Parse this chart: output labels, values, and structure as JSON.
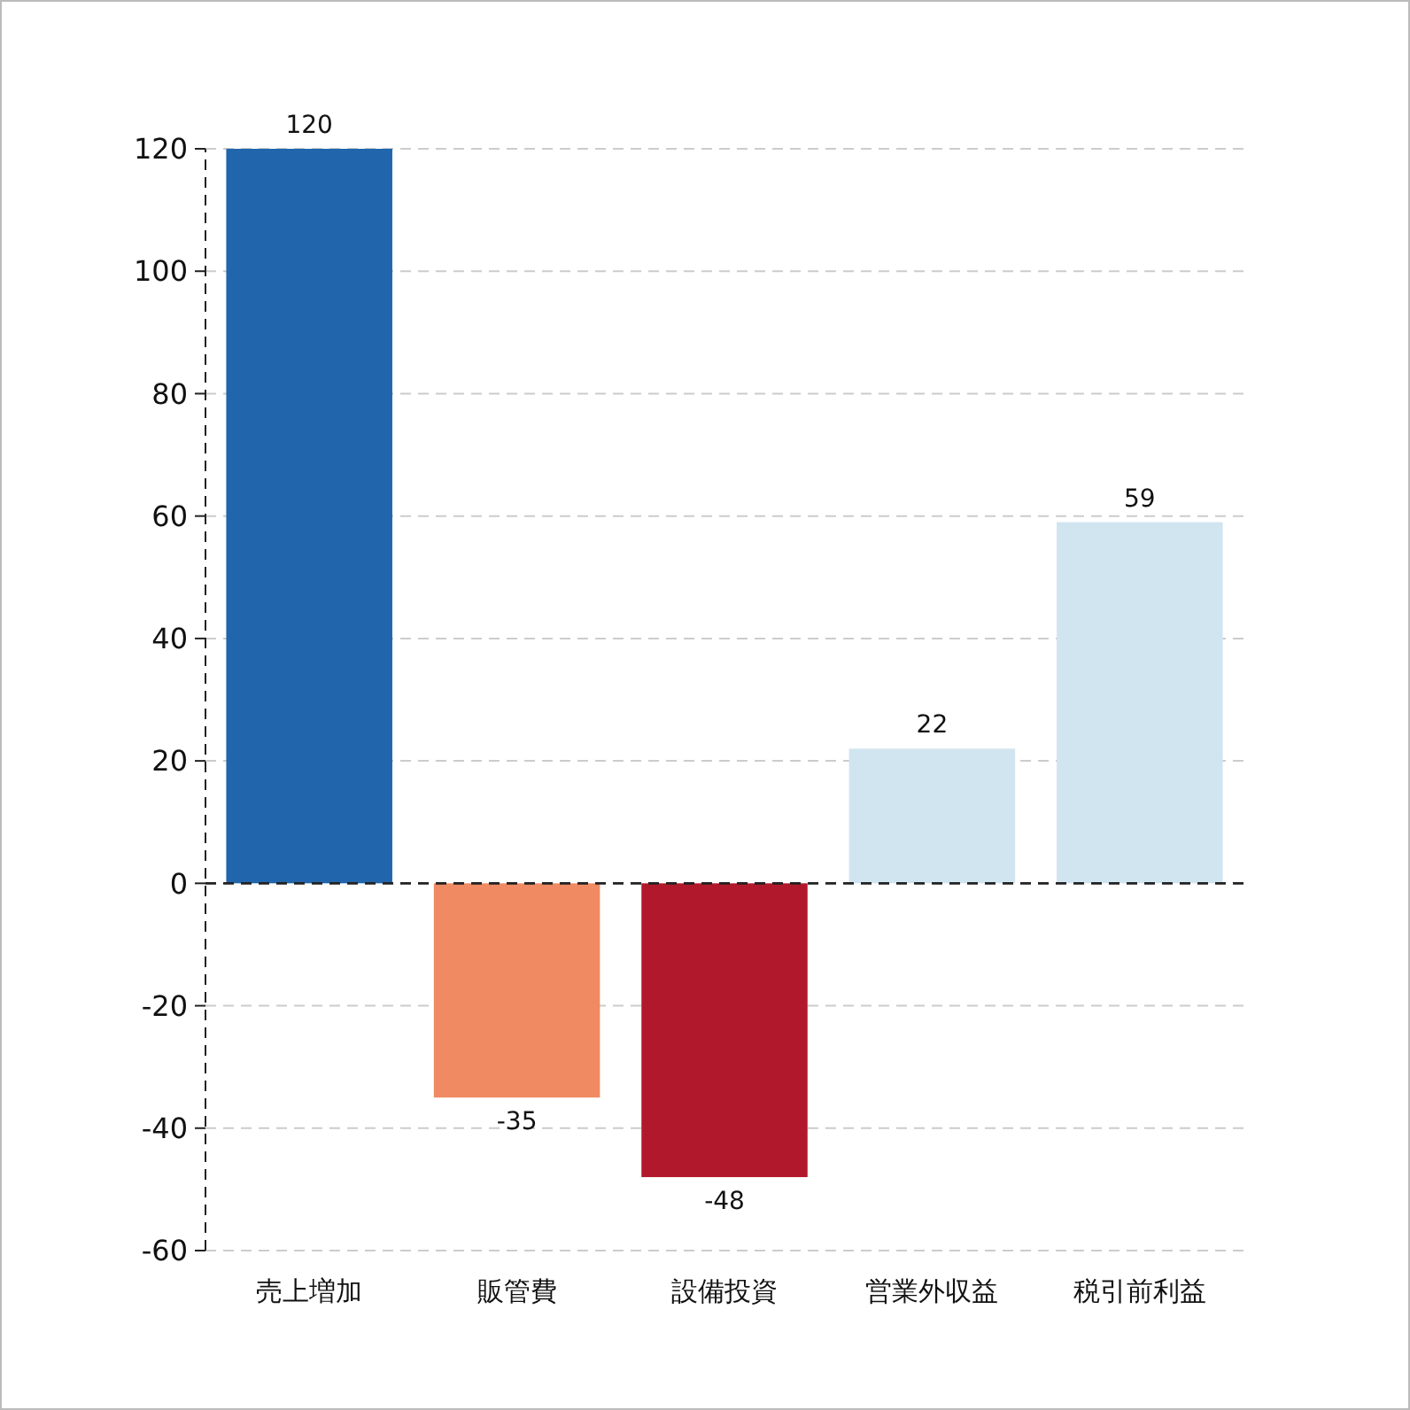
{
  "chart_data": {
    "type": "bar",
    "categories": [
      "売上増加",
      "販管費",
      "設備投資",
      "営業外収益",
      "税引前利益"
    ],
    "values": [
      120,
      -35,
      -48,
      22,
      59
    ],
    "colors": [
      "#2166ac",
      "#ef8a62",
      "#b2182b",
      "#d1e5f0",
      "#d1e5f0"
    ],
    "ylim": [
      -60,
      120
    ],
    "yticks": [
      -60,
      -40,
      -20,
      0,
      20,
      40,
      60,
      80,
      100,
      120
    ],
    "grid": "y",
    "data_labels": true,
    "ref_lines": [
      {
        "axis": "y",
        "value": 0,
        "color": "#222222",
        "line_style": "dashed"
      }
    ]
  }
}
